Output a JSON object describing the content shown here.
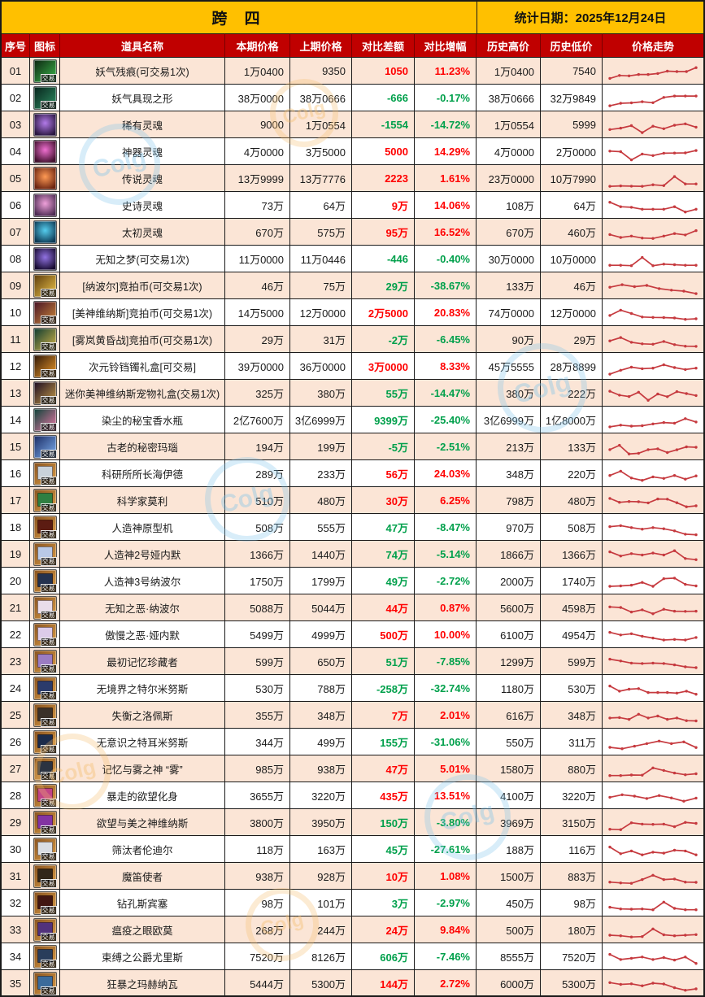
{
  "title": "跨 四",
  "stat_date": "统计日期：2025年12月24日",
  "badge_label": "交易",
  "columns": [
    "序号",
    "图标",
    "道具名称",
    "本期价格",
    "上期价格",
    "对比差额",
    "对比增幅",
    "历史高价",
    "历史低价",
    "价格走势"
  ],
  "colors": {
    "title_bg": "#FFC000",
    "header_bg": "#C00000",
    "row_alt_bg": "#FBE5D6",
    "up_red": "#FF0000",
    "down_green": "#00A04B",
    "spark_red": "#C63A3F"
  },
  "chart_data": {
    "type": "table",
    "note": "每行价格走势列为红色折线迷你图，spark数组为相对价格走势(0-100)"
  },
  "rows": [
    {
      "no": "01",
      "name": "妖气残痕(可交易1次)",
      "cur": "1万0400",
      "prev": "9350",
      "diff": "1050",
      "pct": "11.23%",
      "dir": "up",
      "high": "1万0400",
      "low": "7540",
      "icon": {
        "kind": "streak",
        "c1": "#0d2410",
        "c2": "#3dba4e",
        "badge": true
      },
      "spark": [
        15,
        30,
        28,
        35,
        35,
        40,
        52,
        50,
        50,
        70
      ]
    },
    {
      "no": "02",
      "name": "妖气具现之形",
      "cur": "38万0000",
      "prev": "38万0666",
      "diff": "-666",
      "pct": "-0.17%",
      "dir": "down",
      "high": "38万0666",
      "low": "32万9849",
      "icon": {
        "kind": "streak",
        "c1": "#07231c",
        "c2": "#2f8f63",
        "badge": true
      },
      "spark": [
        12,
        25,
        27,
        33,
        28,
        55,
        62,
        62,
        62
      ]
    },
    {
      "no": "03",
      "name": "稀有灵魂",
      "cur": "9000",
      "prev": "1万0554",
      "diff": "-1554",
      "pct": "-14.72%",
      "dir": "down",
      "high": "1万0554",
      "low": "5999",
      "icon": {
        "kind": "orb",
        "c1": "#2a1740",
        "c2": "#b27ae8",
        "badge": false
      },
      "spark": [
        28,
        35,
        48,
        12,
        45,
        32,
        50,
        57,
        40
      ]
    },
    {
      "no": "04",
      "name": "神器灵魂",
      "cur": "4万0000",
      "prev": "3万5000",
      "diff": "5000",
      "pct": "14.29%",
      "dir": "up",
      "high": "4万0000",
      "low": "2万0000",
      "icon": {
        "kind": "orb",
        "c1": "#42102e",
        "c2": "#ef6fd0",
        "badge": false
      },
      "spark": [
        55,
        52,
        10,
        40,
        32,
        44,
        45,
        46,
        58
      ]
    },
    {
      "no": "05",
      "name": "传说灵魂",
      "cur": "13万9999",
      "prev": "13万7776",
      "diff": "2223",
      "pct": "1.61%",
      "dir": "up",
      "high": "23万0000",
      "low": "10万7990",
      "icon": {
        "kind": "orb",
        "c1": "#6b2410",
        "c2": "#ff9a55",
        "badge": false
      },
      "spark": [
        12,
        14,
        13,
        12,
        20,
        16,
        62,
        24,
        24
      ]
    },
    {
      "no": "06",
      "name": "史诗灵魂",
      "cur": "73万",
      "prev": "64万",
      "diff": "9万",
      "pct": "14.06%",
      "dir": "up",
      "high": "108万",
      "low": "64万",
      "icon": {
        "kind": "orb",
        "c1": "#4c2b52",
        "c2": "#efa0da",
        "badge": false
      },
      "spark": [
        68,
        45,
        42,
        32,
        32,
        32,
        45,
        18,
        32
      ]
    },
    {
      "no": "07",
      "name": "太初灵魂",
      "cur": "670万",
      "prev": "575万",
      "diff": "95万",
      "pct": "16.52%",
      "dir": "up",
      "high": "670万",
      "low": "460万",
      "icon": {
        "kind": "orb",
        "c1": "#0d3a55",
        "c2": "#55cdee",
        "badge": false
      },
      "spark": [
        40,
        25,
        32,
        22,
        20,
        32,
        45,
        38,
        60
      ]
    },
    {
      "no": "08",
      "name": "无知之梦(可交易1次)",
      "cur": "11万0000",
      "prev": "11万0446",
      "diff": "-446",
      "pct": "-0.40%",
      "dir": "down",
      "high": "30万0000",
      "low": "10万0000",
      "icon": {
        "kind": "orb",
        "c1": "#170b30",
        "c2": "#9172e2",
        "badge": false
      },
      "spark": [
        20,
        20,
        18,
        60,
        18,
        26,
        23,
        20,
        20
      ]
    },
    {
      "no": "09",
      "name": "[纳波尔]竞拍币(可交易1次)",
      "cur": "46万",
      "prev": "75万",
      "diff": "29万",
      "pct": "-38.67%",
      "dir": "down",
      "high": "133万",
      "low": "46万",
      "icon": {
        "kind": "coin",
        "c1": "#5d3c0c",
        "c2": "#f0c64a",
        "badge": true
      },
      "spark": [
        45,
        58,
        48,
        54,
        38,
        30,
        25,
        12
      ]
    },
    {
      "no": "10",
      "name": "[美神维纳斯]竞拍币(可交易1次)",
      "cur": "14万5000",
      "prev": "12万0000",
      "diff": "2万5000",
      "pct": "20.83%",
      "dir": "up",
      "high": "74万0000",
      "low": "12万0000",
      "icon": {
        "kind": "coin",
        "c1": "#471326",
        "c2": "#cf8a3a",
        "badge": true
      },
      "spark": [
        38,
        65,
        48,
        30,
        28,
        27,
        25,
        18,
        21
      ]
    },
    {
      "no": "11",
      "name": "[雾岚黄昏战]竞拍币(可交易1次)",
      "cur": "29万",
      "prev": "31万",
      "diff": "-2万",
      "pct": "-6.45%",
      "dir": "down",
      "high": "90万",
      "low": "29万",
      "icon": {
        "kind": "coin",
        "c1": "#0d3a30",
        "c2": "#d9b84a",
        "badge": true
      },
      "spark": [
        45,
        62,
        38,
        30,
        28,
        42,
        26,
        18,
        17
      ]
    },
    {
      "no": "12",
      "name": "次元铃铛镯礼盒[可交易]",
      "cur": "39万0000",
      "prev": "36万0000",
      "diff": "3万0000",
      "pct": "8.33%",
      "dir": "up",
      "high": "45万5555",
      "low": "28万8899",
      "icon": {
        "kind": "box",
        "c1": "#2f1708",
        "c2": "#ef9c2a",
        "badge": true
      },
      "spark": [
        12,
        32,
        48,
        40,
        43,
        60,
        46,
        36,
        43
      ]
    },
    {
      "no": "13",
      "name": "迷你美神维纳斯宠物礼盒(交易1次)",
      "cur": "325万",
      "prev": "380万",
      "diff": "55万",
      "pct": "-14.47%",
      "dir": "down",
      "high": "380万",
      "low": "222万",
      "icon": {
        "kind": "box",
        "c1": "#1b0b22",
        "c2": "#caa04a",
        "badge": true
      },
      "spark": [
        62,
        42,
        35,
        57,
        16,
        48,
        34,
        60,
        50,
        40
      ]
    },
    {
      "no": "14",
      "name": "染尘的秘宝香水瓶",
      "cur": "2亿7600万",
      "prev": "3亿6999万",
      "diff": "9399万",
      "pct": "-25.40%",
      "dir": "down",
      "high": "3亿6999万",
      "low": "1亿8000万",
      "icon": {
        "kind": "box",
        "c1": "#0c4238",
        "c2": "#f07aaa",
        "badge": true
      },
      "spark": [
        17,
        26,
        21,
        23,
        32,
        39,
        36,
        59,
        42
      ]
    },
    {
      "no": "15",
      "name": "古老的秘密玛瑙",
      "cur": "194万",
      "prev": "199万",
      "diff": "-5万",
      "pct": "-2.51%",
      "dir": "down",
      "high": "213万",
      "low": "133万",
      "icon": {
        "kind": "crystal",
        "c1": "#1b2c64",
        "c2": "#7fb0f0",
        "badge": true
      },
      "spark": [
        38,
        60,
        16,
        19,
        38,
        42,
        23,
        37,
        52,
        50
      ]
    },
    {
      "no": "16",
      "name": "科研所所长海伊德",
      "cur": "289万",
      "prev": "233万",
      "diff": "56万",
      "pct": "24.03%",
      "dir": "up",
      "high": "348万",
      "low": "220万",
      "icon": {
        "kind": "card",
        "c1": "#8a5420",
        "c2": "#d99c46",
        "inner": "#c9d2db",
        "badge": true
      },
      "spark": [
        43,
        65,
        30,
        18,
        36,
        28,
        43,
        24,
        41
      ]
    },
    {
      "no": "17",
      "name": "科学家莫利",
      "cur": "510万",
      "prev": "480万",
      "diff": "30万",
      "pct": "6.25%",
      "dir": "up",
      "high": "798万",
      "low": "480万",
      "icon": {
        "kind": "card",
        "c1": "#8a5420",
        "c2": "#d99c46",
        "inner": "#2f7f42",
        "badge": true
      },
      "spark": [
        63,
        43,
        47,
        46,
        40,
        60,
        59,
        41,
        20,
        25
      ]
    },
    {
      "no": "18",
      "name": "人造神原型机",
      "cur": "508万",
      "prev": "555万",
      "diff": "47万",
      "pct": "-8.47%",
      "dir": "down",
      "high": "970万",
      "low": "508万",
      "icon": {
        "kind": "card",
        "c1": "#8a5420",
        "c2": "#d99c46",
        "inner": "#5c1c12",
        "badge": true
      },
      "spark": [
        56,
        61,
        51,
        43,
        51,
        45,
        34,
        17,
        14
      ]
    },
    {
      "no": "19",
      "name": "人造神2号娅内默",
      "cur": "1366万",
      "prev": "1440万",
      "diff": "74万",
      "pct": "-5.14%",
      "dir": "down",
      "high": "1866万",
      "low": "1366万",
      "icon": {
        "kind": "card",
        "c1": "#8a5420",
        "c2": "#d99c46",
        "inner": "#b9c9e7",
        "badge": true
      },
      "spark": [
        64,
        43,
        55,
        48,
        58,
        48,
        70,
        30,
        24
      ]
    },
    {
      "no": "20",
      "name": "人造神3号纳波尔",
      "cur": "1750万",
      "prev": "1799万",
      "diff": "49万",
      "pct": "-2.72%",
      "dir": "down",
      "high": "2000万",
      "low": "1740万",
      "icon": {
        "kind": "card",
        "c1": "#8a5420",
        "c2": "#d99c46",
        "inner": "#24324f",
        "badge": true
      },
      "spark": [
        25,
        27,
        31,
        45,
        25,
        64,
        67,
        35,
        27
      ]
    },
    {
      "no": "21",
      "name": "无知之恶·纳波尔",
      "cur": "5088万",
      "prev": "5044万",
      "diff": "44万",
      "pct": "0.87%",
      "dir": "up",
      "high": "5600万",
      "low": "4598万",
      "icon": {
        "kind": "card",
        "c1": "#8a5420",
        "c2": "#d99c46",
        "inner": "#e9dcea",
        "badge": true
      },
      "spark": [
        57,
        54,
        31,
        42,
        22,
        45,
        35,
        34,
        35
      ]
    },
    {
      "no": "22",
      "name": "傲慢之恶·娅内默",
      "cur": "5499万",
      "prev": "4999万",
      "diff": "500万",
      "pct": "10.00%",
      "dir": "up",
      "high": "6100万",
      "low": "4954万",
      "icon": {
        "kind": "card",
        "c1": "#8a5420",
        "c2": "#d99c46",
        "inner": "#dccbe9",
        "badge": true
      },
      "spark": [
        64,
        51,
        57,
        44,
        35,
        25,
        28,
        25,
        38
      ]
    },
    {
      "no": "23",
      "name": "最初记忆珍藏者",
      "cur": "599万",
      "prev": "650万",
      "diff": "51万",
      "pct": "-7.85%",
      "dir": "down",
      "high": "1299万",
      "low": "599万",
      "icon": {
        "kind": "card",
        "c1": "#8a5420",
        "c2": "#d99c46",
        "inner": "#9b7cc2",
        "badge": true
      },
      "spark": [
        64,
        55,
        44,
        42,
        44,
        42,
        35,
        25,
        21
      ]
    },
    {
      "no": "24",
      "name": "无境界之特尔米努斯",
      "cur": "530万",
      "prev": "788万",
      "diff": "-258万",
      "pct": "-32.74%",
      "dir": "down",
      "high": "1180万",
      "low": "530万",
      "icon": {
        "kind": "card",
        "c1": "#8a5420",
        "c2": "#d99c46",
        "inner": "#2b3b6b",
        "badge": true
      },
      "spark": [
        64,
        38,
        48,
        51,
        31,
        31,
        31,
        28,
        38,
        22
      ]
    },
    {
      "no": "25",
      "name": "失衡之洛佩斯",
      "cur": "355万",
      "prev": "348万",
      "diff": "7万",
      "pct": "2.01%",
      "dir": "up",
      "high": "616万",
      "low": "348万",
      "icon": {
        "kind": "card",
        "c1": "#8a5420",
        "c2": "#d99c46",
        "inner": "#3b3129",
        "badge": true
      },
      "spark": [
        38,
        40,
        31,
        57,
        38,
        48,
        31,
        38,
        24,
        23
      ]
    },
    {
      "no": "26",
      "name": "无意识之特耳米努斯",
      "cur": "344万",
      "prev": "499万",
      "diff": "155万",
      "pct": "-31.06%",
      "dir": "down",
      "high": "550万",
      "low": "311万",
      "icon": {
        "kind": "card",
        "c1": "#8a5420",
        "c2": "#d99c46",
        "inner": "#1b2b4b",
        "badge": true
      },
      "spark": [
        25,
        18,
        31,
        44,
        57,
        44,
        53,
        24
      ]
    },
    {
      "no": "27",
      "name": "记忆与雾之神 “雾”",
      "cur": "985万",
      "prev": "938万",
      "diff": "47万",
      "pct": "5.01%",
      "dir": "up",
      "high": "1580万",
      "low": "880万",
      "icon": {
        "kind": "card",
        "c1": "#8a5420",
        "c2": "#d99c46",
        "inner": "#2b3341",
        "badge": true
      },
      "spark": [
        18,
        18,
        21,
        20,
        57,
        44,
        31,
        22,
        27
      ]
    },
    {
      "no": "28",
      "name": "暴走的欲望化身",
      "cur": "3655万",
      "prev": "3220万",
      "diff": "435万",
      "pct": "13.51%",
      "dir": "up",
      "high": "4100万",
      "low": "3220万",
      "icon": {
        "kind": "card",
        "c1": "#8a5420",
        "c2": "#d99c46",
        "inner": "#c24386",
        "badge": true
      },
      "spark": [
        44,
        57,
        50,
        38,
        53,
        41,
        24,
        40
      ]
    },
    {
      "no": "29",
      "name": "欲望与美之神维纳斯",
      "cur": "3800万",
      "prev": "3950万",
      "diff": "150万",
      "pct": "-3.80%",
      "dir": "down",
      "high": "3969万",
      "low": "3150万",
      "icon": {
        "kind": "card",
        "c1": "#8a5420",
        "c2": "#d99c46",
        "inner": "#8333a3",
        "badge": true
      },
      "spark": [
        18,
        16,
        51,
        44,
        43,
        44,
        31,
        53,
        48
      ]
    },
    {
      "no": "30",
      "name": "筛汰者伦迪尔",
      "cur": "118万",
      "prev": "163万",
      "diff": "45万",
      "pct": "-27.61%",
      "dir": "down",
      "high": "188万",
      "low": "116万",
      "icon": {
        "kind": "card",
        "c1": "#8a5420",
        "c2": "#d99c46",
        "inner": "#d9dde3",
        "badge": true
      },
      "spark": [
        64,
        30,
        44,
        24,
        38,
        33,
        48,
        44,
        24
      ]
    },
    {
      "no": "31",
      "name": "魔笛使者",
      "cur": "938万",
      "prev": "928万",
      "diff": "10万",
      "pct": "1.08%",
      "dir": "up",
      "high": "1500万",
      "low": "883万",
      "icon": {
        "kind": "card",
        "c1": "#8a5420",
        "c2": "#d99c46",
        "inner": "#322619",
        "badge": true
      },
      "spark": [
        22,
        18,
        16,
        35,
        57,
        35,
        38,
        22,
        21
      ]
    },
    {
      "no": "32",
      "name": "钻孔斯宾塞",
      "cur": "98万",
      "prev": "101万",
      "diff": "3万",
      "pct": "-2.97%",
      "dir": "down",
      "high": "450万",
      "low": "98万",
      "icon": {
        "kind": "card",
        "c1": "#8a5420",
        "c2": "#d99c46",
        "inner": "#421712",
        "badge": true
      },
      "spark": [
        31,
        22,
        21,
        22,
        18,
        57,
        25,
        18,
        18
      ]
    },
    {
      "no": "33",
      "name": "瘟疫之眼欧莫",
      "cur": "268万",
      "prev": "244万",
      "diff": "24万",
      "pct": "9.84%",
      "dir": "up",
      "high": "500万",
      "low": "180万",
      "icon": {
        "kind": "card",
        "c1": "#8a5420",
        "c2": "#d99c46",
        "inner": "#52327c",
        "badge": true
      },
      "spark": [
        25,
        22,
        16,
        18,
        57,
        27,
        22,
        25,
        28
      ]
    },
    {
      "no": "34",
      "name": "束缚之公爵尤里斯",
      "cur": "7520万",
      "prev": "8126万",
      "diff": "606万",
      "pct": "-7.46%",
      "dir": "down",
      "high": "8555万",
      "low": "7520万",
      "icon": {
        "kind": "card",
        "c1": "#8a5420",
        "c2": "#d99c46",
        "inner": "#293d5b",
        "badge": true
      },
      "spark": [
        64,
        38,
        44,
        51,
        38,
        48,
        35,
        51,
        18
      ]
    },
    {
      "no": "35",
      "name": "狂暴之玛赫纳瓦",
      "cur": "5444万",
      "prev": "5300万",
      "diff": "144万",
      "pct": "2.72%",
      "dir": "up",
      "high": "6000万",
      "low": "5300万",
      "icon": {
        "kind": "card",
        "c1": "#8a5420",
        "c2": "#d99c46",
        "inner": "#3b6b9b",
        "badge": true
      },
      "spark": [
        57,
        48,
        51,
        41,
        54,
        50,
        31,
        18,
        25
      ]
    }
  ]
}
